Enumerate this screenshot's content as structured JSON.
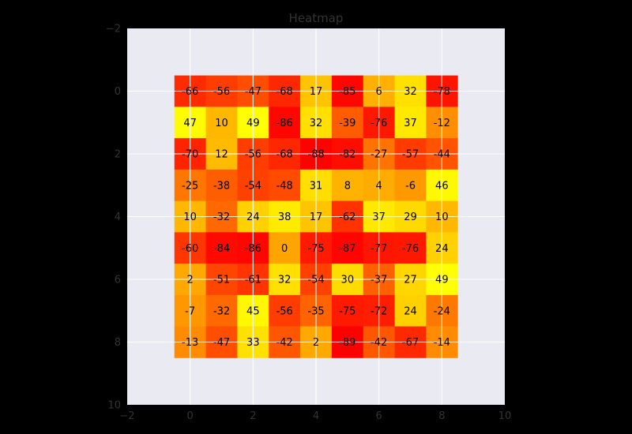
{
  "chart_data": {
    "type": "heatmap",
    "title": "Heatmap",
    "xlabel": "",
    "ylabel": "",
    "xlim": [
      -2,
      10
    ],
    "ylim": [
      10,
      -2
    ],
    "x_ticks": [
      -2,
      0,
      2,
      4,
      6,
      8,
      10
    ],
    "y_ticks": [
      -2,
      0,
      2,
      4,
      6,
      8,
      10
    ],
    "x_tick_labels": [
      "−2",
      "0",
      "2",
      "4",
      "6",
      "8",
      "10"
    ],
    "y_tick_labels": [
      "−2",
      "0",
      "2",
      "4",
      "6",
      "8",
      "10"
    ],
    "grid": true,
    "colormap": "autumn",
    "colors": {
      "figure_background": "#000000",
      "axes_background": "#eaeaf2",
      "grid": "#ffffff",
      "text": "#333333",
      "cell_text": "#000000",
      "low": "#ff0000",
      "high": "#ffff00"
    },
    "values": [
      [
        -66,
        -56,
        -47,
        -68,
        17,
        -85,
        6,
        32,
        -78
      ],
      [
        47,
        10,
        49,
        -86,
        32,
        -39,
        -76,
        37,
        -12
      ],
      [
        -70,
        12,
        -56,
        -68,
        -88,
        -82,
        -27,
        -57,
        -44
      ],
      [
        -25,
        -38,
        -54,
        -48,
        31,
        8,
        4,
        -6,
        46
      ],
      [
        10,
        -32,
        24,
        38,
        17,
        -62,
        37,
        29,
        10
      ],
      [
        -60,
        -84,
        -86,
        0,
        -75,
        -87,
        -77,
        -76,
        24
      ],
      [
        2,
        -51,
        -61,
        32,
        -54,
        30,
        -37,
        27,
        49
      ],
      [
        -7,
        -32,
        45,
        -56,
        -35,
        -75,
        -72,
        24,
        -24
      ],
      [
        -13,
        -47,
        33,
        -42,
        2,
        -89,
        -42,
        -67,
        -14
      ]
    ]
  }
}
